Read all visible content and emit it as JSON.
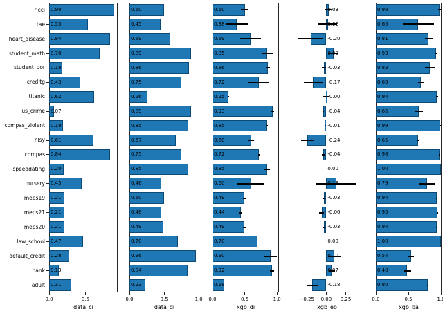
{
  "figure": {
    "background": "#ffffff",
    "bar_color": "#1f77b4",
    "bar_edge_color": "#0d4a75",
    "error_bar_color": "#000000",
    "axis_color": "#262626",
    "text_color": "#000000"
  },
  "categories": [
    "ricci",
    "tae",
    "heart_disease",
    "student_math",
    "student_por",
    "creditg",
    "titanic",
    "us_crime",
    "compas_violent",
    "nlsy",
    "compas",
    "speeddating",
    "nursery",
    "meps19",
    "meps21",
    "meps20",
    "law_school",
    "default_credit",
    "bank",
    "adult"
  ],
  "chart_data": [
    {
      "type": "bar",
      "orientation": "horizontal",
      "xlabel": "data_ci",
      "xlim": [
        0,
        0.945
      ],
      "xticks": [
        0,
        0.5
      ],
      "xtick_labels": [
        "0.0",
        "0.5"
      ],
      "show_y_tick_labels": true,
      "values": [
        0.9,
        0.53,
        0.84,
        0.7,
        0.18,
        0.43,
        0.62,
        0.07,
        0.19,
        0.61,
        0.84,
        0.2,
        0.45,
        0.21,
        0.21,
        0.21,
        0.47,
        0.28,
        0.13,
        0.31
      ],
      "bar_labels": [
        "0.90",
        "0.53",
        "0.84",
        "0.70",
        "0.18",
        "0.43",
        "0.62",
        "0.07",
        "0.19",
        "0.61",
        "0.84",
        "0.20",
        "0.45",
        "0.21",
        "0.21",
        "0.21",
        "0.47",
        "0.28",
        "0.13",
        "0.31"
      ],
      "errors": null
    },
    {
      "type": "bar",
      "orientation": "horizontal",
      "xlabel": "data_di",
      "xlim": [
        0,
        1.008
      ],
      "xticks": [
        0,
        0.5,
        1.0
      ],
      "xtick_labels": [
        "0.0",
        "0.5",
        "1.0"
      ],
      "show_y_tick_labels": false,
      "values": [
        0.5,
        0.45,
        0.59,
        0.89,
        0.86,
        0.75,
        0.26,
        0.89,
        0.85,
        0.67,
        0.75,
        0.85,
        0.46,
        0.5,
        0.46,
        0.49,
        0.7,
        0.96,
        0.84,
        0.23
      ],
      "bar_labels": [
        "0.50",
        "0.45",
        "0.59",
        "0.89",
        "0.86",
        "0.75",
        "0.26",
        "0.89",
        "0.85",
        "0.67",
        "0.75",
        "0.85",
        "0.46",
        "0.50",
        "0.46",
        "0.49",
        "0.70",
        "0.96",
        "0.84",
        "0.23"
      ],
      "errors": null
    },
    {
      "type": "bar",
      "orientation": "horizontal",
      "xlabel": "xgb_di",
      "xlim": [
        0,
        1.03
      ],
      "xticks": [
        0,
        0.5,
        1.0
      ],
      "xtick_labels": [
        "0.0",
        "0.5",
        "1.0"
      ],
      "show_y_tick_labels": false,
      "values": [
        0.5,
        0.38,
        0.59,
        0.85,
        0.86,
        0.72,
        0.25,
        0.93,
        0.85,
        0.6,
        0.72,
        0.85,
        0.6,
        0.49,
        0.44,
        0.49,
        0.7,
        0.9,
        0.92,
        0.18
      ],
      "bar_labels": [
        "0.50",
        "0.38",
        "0.59",
        "0.85",
        "0.86",
        "0.72",
        "0.25",
        "0.93",
        "0.85",
        "0.60",
        "0.72",
        "0.85",
        "0.60",
        "0.49",
        "0.44",
        "0.49",
        "0.70",
        "0.90",
        "0.92",
        "0.18"
      ],
      "errors": [
        0.06,
        0.18,
        0.16,
        0.08,
        0.03,
        0.16,
        0.01,
        0.03,
        0.01,
        0.04,
        0.01,
        0.04,
        0.21,
        0.02,
        0.02,
        0.02,
        0.0,
        0.1,
        0.03,
        0.0
      ]
    },
    {
      "type": "bar",
      "orientation": "horizontal",
      "xlabel": "xgb_eo",
      "xlim": [
        -0.43,
        0.45
      ],
      "xticks": [
        -0.25,
        0.0,
        0.25
      ],
      "xtick_labels": [
        "−0.25",
        "0.00",
        "0.25"
      ],
      "show_y_tick_labels": false,
      "values": [
        0.03,
        0.02,
        -0.2,
        0.09,
        -0.03,
        -0.17,
        -0.002,
        -0.04,
        -0.01,
        -0.24,
        -0.04,
        0.0,
        0.13,
        -0.03,
        -0.06,
        -0.03,
        0.0,
        0.1,
        0.07,
        -0.18
      ],
      "bar_labels": [
        "0.03",
        "0.02",
        "-0.20",
        "0.09",
        "-0.03",
        "-0.17",
        "-0.00",
        "-0.04",
        "-0.01",
        "-0.24",
        "-0.04",
        "0.00",
        "0.13",
        "-0.03",
        "-0.06",
        "-0.03",
        "0.00",
        "0.10",
        "0.07",
        "-0.18"
      ],
      "errors": [
        0.04,
        0.12,
        0.16,
        0.07,
        0.03,
        0.12,
        0.04,
        0.01,
        0.005,
        0.08,
        0.02,
        0.0,
        0.26,
        0.02,
        0.03,
        0.02,
        0.0,
        0.08,
        0.04,
        0.07
      ]
    },
    {
      "type": "bar",
      "orientation": "horizontal",
      "xlabel": "xgb_ba",
      "xlim": [
        0,
        1.01
      ],
      "xticks": [
        0,
        0.5,
        1.0
      ],
      "xtick_labels": [
        "0.0",
        "0.5",
        "1.0"
      ],
      "show_y_tick_labels": false,
      "values": [
        0.98,
        0.65,
        0.81,
        0.93,
        0.83,
        0.69,
        0.94,
        0.66,
        0.99,
        0.65,
        0.98,
        1.0,
        0.79,
        0.94,
        0.95,
        0.94,
        1.0,
        0.54,
        0.48,
        0.8
      ],
      "bar_labels": [
        "0.98",
        "0.65",
        "0.81",
        "0.93",
        "0.83",
        "0.69",
        "0.94",
        "0.66",
        "0.99",
        "0.65",
        "0.98",
        "1.00",
        "0.79",
        "0.94",
        "0.95",
        "0.94",
        "1.00",
        "0.54",
        "0.48",
        "0.80"
      ],
      "errors": [
        0.02,
        0.24,
        0.06,
        0.02,
        0.07,
        0.04,
        0.02,
        0.06,
        0.01,
        0.02,
        0.01,
        0.0,
        0.12,
        0.01,
        0.01,
        0.01,
        0.0,
        0.05,
        0.06,
        0.01
      ]
    }
  ]
}
